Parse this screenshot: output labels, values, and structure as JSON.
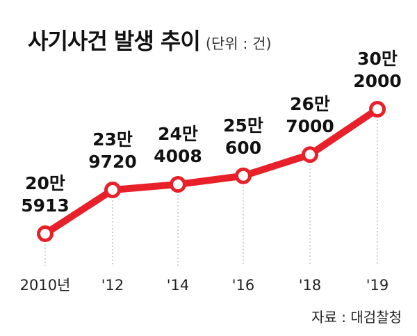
{
  "header": {
    "title": "사기사건 발생 추이",
    "unit": "(단위 : 건)"
  },
  "footer": {
    "source": "자료 : 대검찰청"
  },
  "colors": {
    "line": "#e8202a",
    "marker_fill": "#ffffff",
    "guide": "#b3b3b3"
  },
  "chart_data": {
    "type": "line",
    "title": "사기사건 발생 추이",
    "unit": "(단위 : 건)",
    "x": [
      "2010년",
      "'12",
      "'14",
      "'16",
      "'18",
      "'19"
    ],
    "values": [
      205913,
      239720,
      244008,
      250600,
      267000,
      302000
    ],
    "value_labels": [
      [
        "20만",
        "5913"
      ],
      [
        "23만",
        "9720"
      ],
      [
        "24만",
        "4008"
      ],
      [
        "25만",
        "600"
      ],
      [
        "26만",
        "7000"
      ],
      [
        "30만",
        "2000"
      ]
    ],
    "grid": false,
    "legend": "none"
  }
}
